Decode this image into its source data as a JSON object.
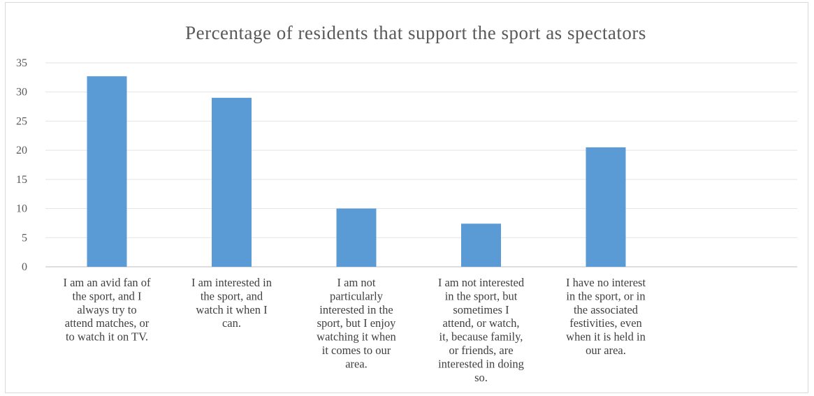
{
  "chart_data": {
    "type": "bar",
    "title": "Percentage  of residents  that  support  the  sport  as  spectators",
    "xlabel": "",
    "ylabel": "",
    "ylim": [
      0,
      35
    ],
    "yticks": [
      0,
      5,
      10,
      15,
      20,
      25,
      30,
      35
    ],
    "grid": true,
    "legend": "none",
    "bar_color": "#5b9bd5",
    "categories": [
      [
        "I am an avid fan of",
        "the sport, and I",
        "always try to",
        "attend matches, or",
        "to watch it on TV."
      ],
      [
        "I am interested in",
        "the sport, and",
        "watch it when I",
        "can."
      ],
      [
        "I am not",
        "particularly",
        "interested in the",
        "sport, but I enjoy",
        "watching it when",
        "it comes to our",
        "area."
      ],
      [
        "I am not interested",
        "in the sport, but",
        "sometimes I",
        "attend, or watch,",
        "it, because family,",
        "or friends, are",
        "interested in doing",
        "so."
      ],
      [
        "I have no interest",
        "in the sport, or in",
        "the associated",
        "festivities, even",
        "when it is held in",
        "our area."
      ]
    ],
    "values": [
      32.7,
      29.0,
      10.0,
      7.4,
      20.5
    ]
  }
}
